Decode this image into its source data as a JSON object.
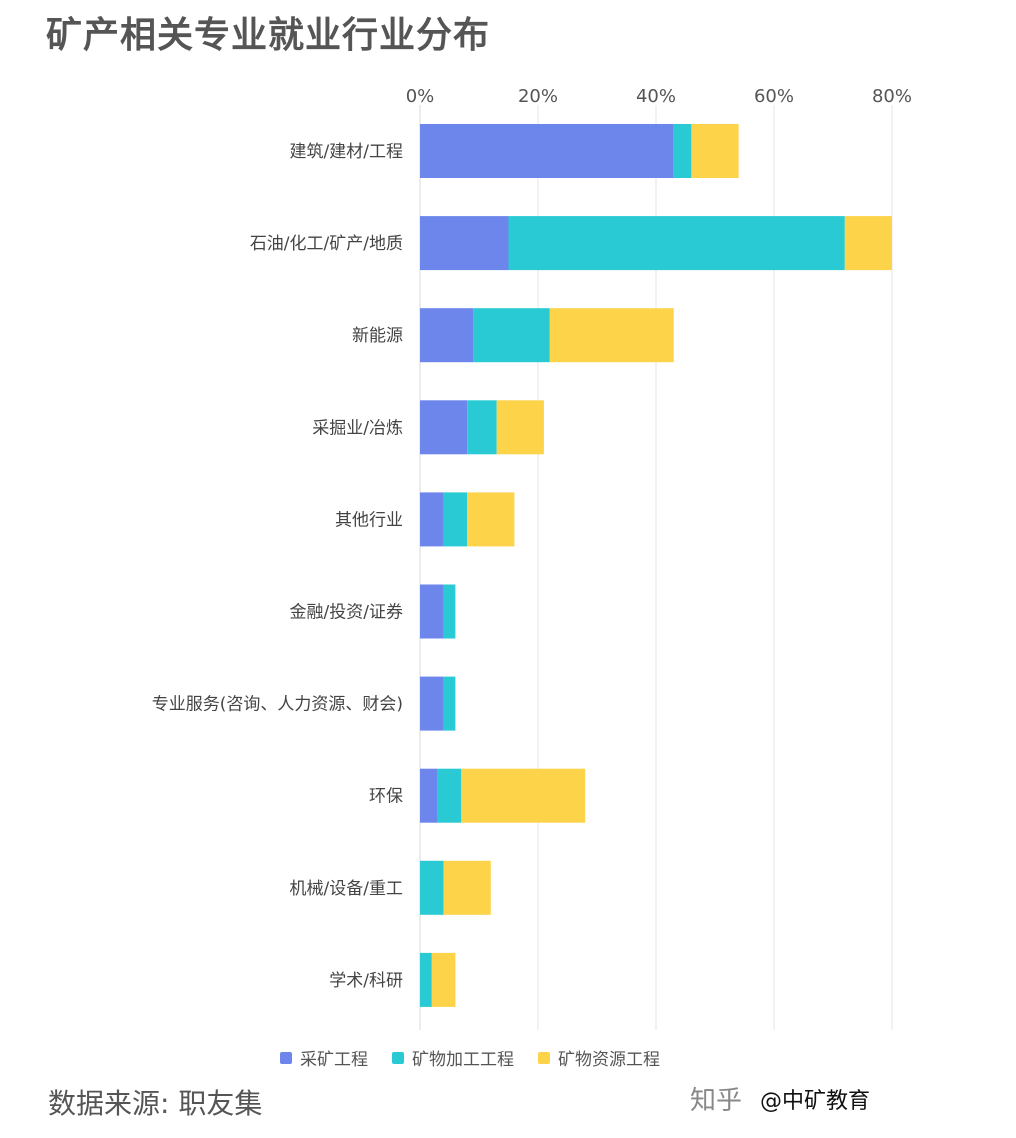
{
  "title": "矿产相关专业就业行业分布",
  "source": "数据来源: 职友集",
  "watermark": {
    "site": "知乎",
    "handle": "@中矿教育"
  },
  "colors": {
    "s1": "#6d86ec",
    "s2": "#29cad3",
    "s3": "#fdd34a",
    "grid": "#e6e6e6"
  },
  "chart_data": {
    "type": "bar",
    "orientation": "horizontal",
    "stacked": true,
    "title": "矿产相关专业就业行业分布",
    "xlim": [
      0,
      80
    ],
    "x_ticks": [
      "0%",
      "20%",
      "40%",
      "60%",
      "80%"
    ],
    "x_tick_values": [
      0,
      20,
      40,
      60,
      80
    ],
    "grid": true,
    "legend_position": "bottom",
    "categories": [
      "建筑/建材/工程",
      "石油/化工/矿产/地质",
      "新能源",
      "采掘业/冶炼",
      "其他行业",
      "金融/投资/证券",
      "专业服务(咨询、人力资源、财会)",
      "环保",
      "机械/设备/重工",
      "学术/科研"
    ],
    "series": [
      {
        "name": "采矿工程",
        "values": [
          43,
          15,
          9,
          8,
          4,
          4,
          4,
          3,
          0,
          0
        ]
      },
      {
        "name": "矿物加工工程",
        "values": [
          3,
          57,
          13,
          5,
          4,
          2,
          2,
          4,
          4,
          2
        ]
      },
      {
        "name": "矿物资源工程",
        "values": [
          8,
          8,
          21,
          8,
          8,
          0,
          0,
          21,
          8,
          4
        ]
      }
    ]
  }
}
